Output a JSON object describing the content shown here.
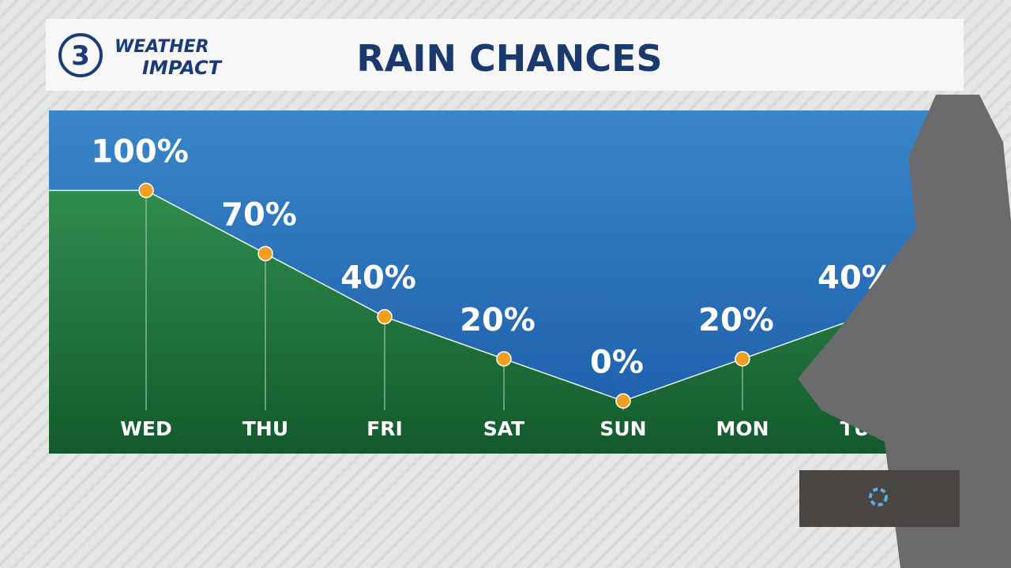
{
  "logo": {
    "number": "3",
    "line1": "WEATHER",
    "line2": "IMPACT"
  },
  "chart_data": {
    "type": "area",
    "title": "RAIN CHANCES",
    "categories": [
      "WED",
      "THU",
      "FRI",
      "SAT",
      "SUN",
      "MON",
      "TUE"
    ],
    "values": [
      100,
      70,
      40,
      20,
      0,
      20,
      40
    ],
    "value_labels": [
      "100%",
      "70%",
      "40%",
      "20%",
      "0%",
      "20%",
      "40%"
    ],
    "ylim": [
      -25,
      138
    ],
    "color": "#2a7a45",
    "point_color": "#f0a020"
  }
}
